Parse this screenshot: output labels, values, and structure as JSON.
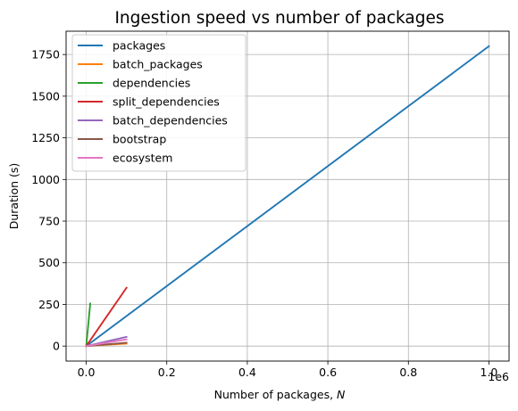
{
  "chart_data": {
    "type": "line",
    "title": "Ingestion speed vs number of packages",
    "xlabel": "Number of packages, ",
    "xlabel_var": "N",
    "ylabel": "Duration (s)",
    "x_offset_label": "1e6",
    "xlim": [
      -50000,
      1050000
    ],
    "ylim": [
      -90,
      1890
    ],
    "x_ticks": [
      0,
      200000,
      400000,
      600000,
      800000,
      1000000
    ],
    "x_tick_labels": [
      "0.0",
      "0.2",
      "0.4",
      "0.6",
      "0.8",
      "1.0"
    ],
    "y_ticks": [
      0,
      250,
      500,
      750,
      1000,
      1250,
      1500,
      1750
    ],
    "y_tick_labels": [
      "0",
      "250",
      "500",
      "750",
      "1000",
      "1250",
      "1500",
      "1750"
    ],
    "grid": true,
    "legend_position": "top-left",
    "series": [
      {
        "name": "packages",
        "color": "#1f77b4",
        "points": [
          [
            0,
            0
          ],
          [
            1000000,
            1800
          ]
        ]
      },
      {
        "name": "batch_packages",
        "color": "#ff7f0e",
        "points": [
          [
            0,
            0
          ],
          [
            100000,
            15
          ]
        ]
      },
      {
        "name": "dependencies",
        "color": "#2ca02c",
        "points": [
          [
            0,
            0
          ],
          [
            10000,
            255
          ]
        ]
      },
      {
        "name": "split_dependencies",
        "color": "#d62728",
        "points": [
          [
            0,
            0
          ],
          [
            100000,
            350
          ]
        ]
      },
      {
        "name": "batch_dependencies",
        "color": "#9467bd",
        "points": [
          [
            0,
            0
          ],
          [
            100000,
            55
          ]
        ]
      },
      {
        "name": "bootstrap",
        "color": "#8c564b",
        "points": [
          [
            0,
            0
          ],
          [
            100000,
            20
          ]
        ]
      },
      {
        "name": "ecosystem",
        "color": "#e377c2",
        "points": [
          [
            0,
            0
          ],
          [
            100000,
            40
          ]
        ]
      }
    ]
  }
}
